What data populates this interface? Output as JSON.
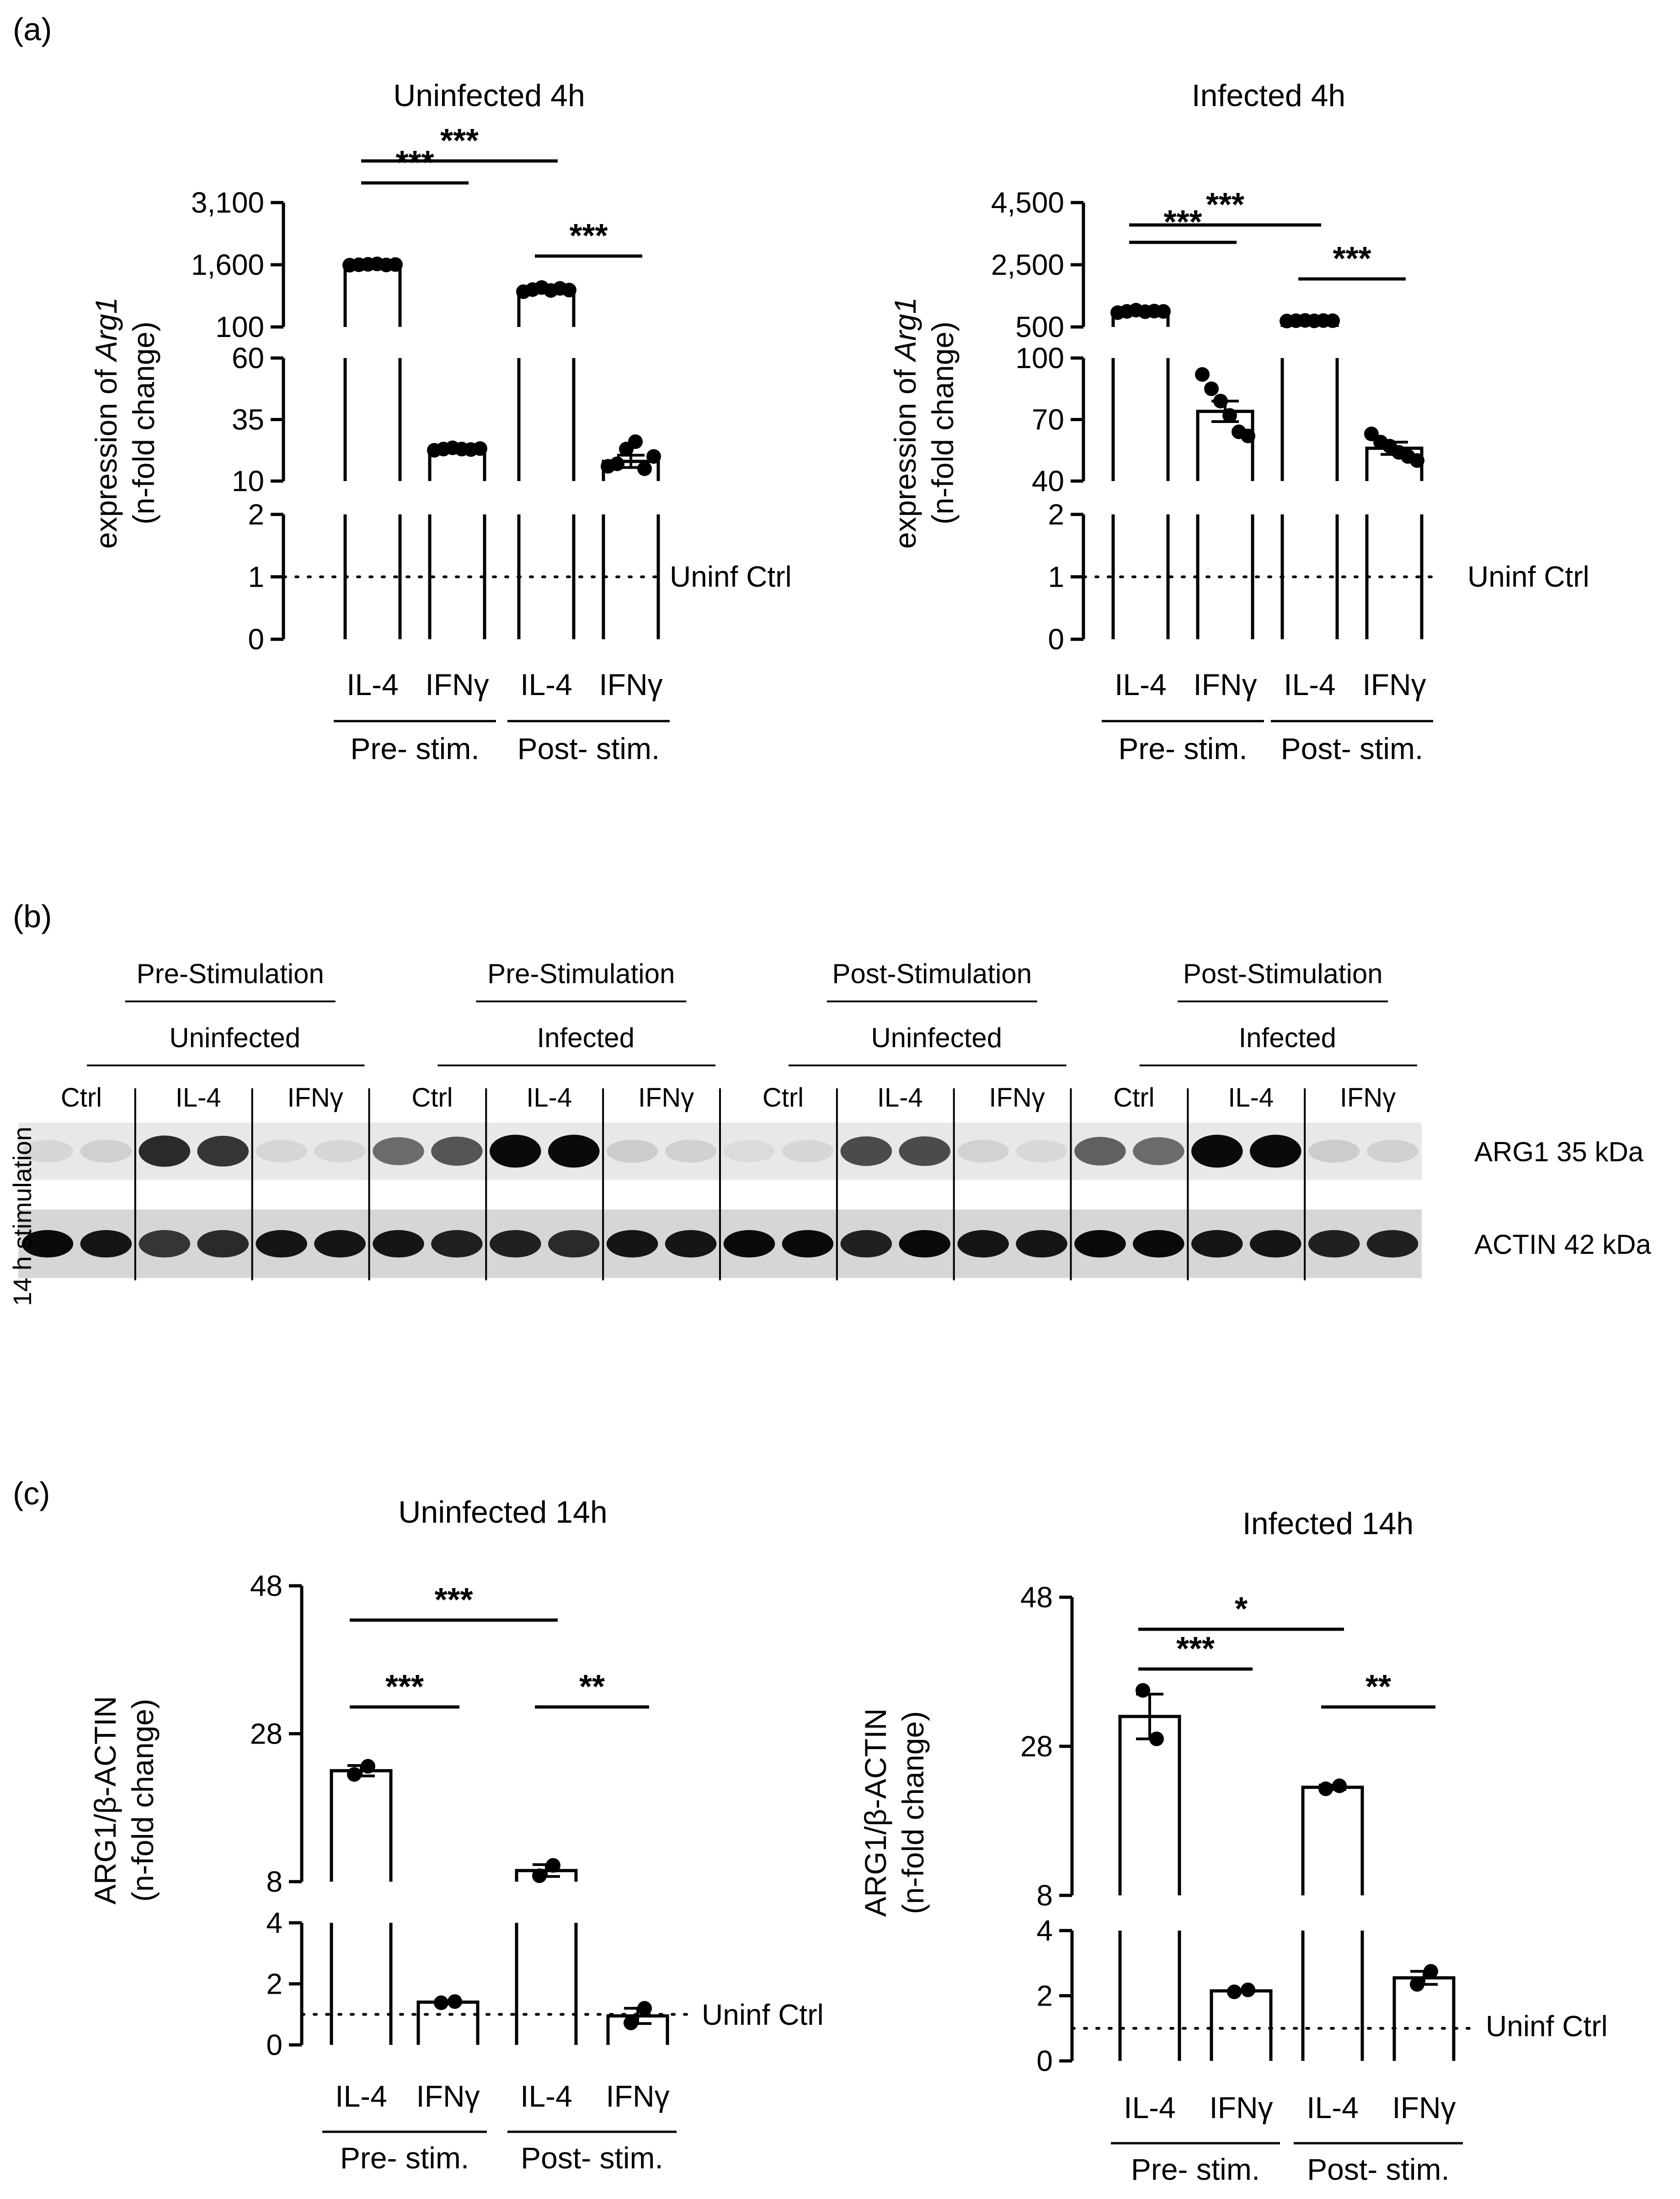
{
  "panel_labels": {
    "a": "(a)",
    "b": "(b)",
    "c": "(c)"
  },
  "ref_label": "Uninf Ctrl",
  "group_labels": [
    "Pre- stim.",
    "Post- stim."
  ],
  "chart_data": [
    {
      "id": "a1",
      "type": "bar",
      "axis": "broken",
      "title": "Uninfected 4h",
      "ylabel": [
        "expression of ",
        "Arg1",
        "(n-fold change)"
      ],
      "categories": [
        "IL-4",
        "IFNγ",
        "IL-4",
        "IFNγ"
      ],
      "groups": [
        "Pre- stim.",
        "Post- stim."
      ],
      "reference_line": 1,
      "segments": [
        {
          "range": [
            0,
            2
          ],
          "ticks": [
            "0",
            "1",
            "2"
          ],
          "tick_values": [
            0,
            1,
            2
          ]
        },
        {
          "range": [
            10,
            60
          ],
          "ticks": [
            "10",
            "35",
            "60"
          ],
          "tick_values": [
            10,
            35,
            60
          ]
        },
        {
          "range": [
            100,
            3100
          ],
          "ticks": [
            "100",
            "1,600",
            "3,100"
          ],
          "tick_values": [
            100,
            1600,
            3100
          ]
        }
      ],
      "values": [
        1600,
        23,
        1000,
        18
      ],
      "errors": [
        25,
        0.6,
        60,
        2.5
      ],
      "points": [
        [
          1590,
          1600,
          1610,
          1620,
          1595,
          1605
        ],
        [
          22.5,
          23,
          23.5,
          23,
          22.8,
          23.2
        ],
        [
          950,
          1000,
          1050,
          980,
          1030,
          990
        ],
        [
          16,
          17,
          23,
          26,
          15,
          20
        ]
      ],
      "significance": [
        {
          "from": 0,
          "to": 1,
          "label": "***"
        },
        {
          "from": 2,
          "to": 3,
          "label": "***"
        },
        {
          "from": 0,
          "to": 2,
          "label": "***"
        }
      ]
    },
    {
      "id": "a2",
      "type": "bar",
      "axis": "broken",
      "title": "Infected 4h",
      "ylabel": [
        "expression of ",
        "Arg1",
        "(n-fold change)"
      ],
      "categories": [
        "IL-4",
        "IFNγ",
        "IL-4",
        "IFNγ"
      ],
      "groups": [
        "Pre- stim.",
        "Post- stim."
      ],
      "reference_line": 1,
      "segments": [
        {
          "range": [
            0,
            2
          ],
          "ticks": [
            "0",
            "1",
            "2"
          ],
          "tick_values": [
            0,
            1,
            2
          ]
        },
        {
          "range": [
            40,
            100
          ],
          "ticks": [
            "40",
            "70",
            "100"
          ],
          "tick_values": [
            40,
            70,
            100
          ]
        },
        {
          "range": [
            500,
            4500
          ],
          "ticks": [
            "500",
            "2,500",
            "4,500"
          ],
          "tick_values": [
            500,
            2500,
            4500
          ]
        }
      ],
      "values": [
        1000,
        74,
        700,
        56
      ],
      "errors": [
        40,
        5,
        15,
        3
      ],
      "points": [
        [
          960,
          1000,
          1040,
          990,
          1010,
          1000
        ],
        [
          92,
          85,
          79,
          72,
          64,
          62
        ],
        [
          690,
          700,
          710,
          695,
          705,
          700
        ],
        [
          63,
          59,
          57,
          54,
          52,
          50
        ]
      ],
      "significance": [
        {
          "from": 0,
          "to": 1,
          "label": "***"
        },
        {
          "from": 2,
          "to": 3,
          "label": "***"
        },
        {
          "from": 0,
          "to": 2,
          "label": "***"
        }
      ]
    },
    {
      "id": "c1",
      "type": "bar",
      "axis": "broken",
      "title": "Uninfected 14h",
      "ylabel": [
        "ARG1/β-ACTIN",
        "",
        "(n-fold change)"
      ],
      "categories": [
        "IL-4",
        "IFNγ",
        "IL-4",
        "IFNγ"
      ],
      "groups": [
        "Pre- stim.",
        "Post- stim."
      ],
      "reference_line": 1,
      "segments": [
        {
          "range": [
            0,
            4
          ],
          "ticks": [
            "0",
            "2",
            "4"
          ],
          "tick_values": [
            0,
            2,
            4
          ]
        },
        {
          "range": [
            8,
            48
          ],
          "ticks": [
            "8",
            "28",
            "48"
          ],
          "tick_values": [
            8,
            28,
            48
          ]
        }
      ],
      "values": [
        23,
        1.4,
        9.5,
        0.95
      ],
      "errors": [
        0.7,
        0.04,
        0.8,
        0.25
      ],
      "points": [
        [
          22.5,
          23.6
        ],
        [
          1.38,
          1.42
        ],
        [
          8.8,
          10.2
        ],
        [
          0.72,
          1.2
        ]
      ],
      "significance": [
        {
          "from": 0,
          "to": 1,
          "label": "***"
        },
        {
          "from": 2,
          "to": 3,
          "label": "**"
        },
        {
          "from": 0,
          "to": 2,
          "label": "***"
        }
      ]
    },
    {
      "id": "c2",
      "type": "bar",
      "axis": "broken",
      "title": "Infected 14h",
      "ylabel": [
        "ARG1/β-ACTIN",
        "",
        "(n-fold change)"
      ],
      "categories": [
        "IL-4",
        "IFNγ",
        "IL-4",
        "IFNγ"
      ],
      "groups": [
        "Pre- stim.",
        "Post- stim."
      ],
      "reference_line": 1,
      "segments": [
        {
          "range": [
            0,
            4
          ],
          "ticks": [
            "0",
            "2",
            "4"
          ],
          "tick_values": [
            0,
            2,
            4
          ]
        },
        {
          "range": [
            8,
            48
          ],
          "ticks": [
            "8",
            "28",
            "48"
          ],
          "tick_values": [
            8,
            28,
            48
          ]
        }
      ],
      "values": [
        32,
        2.15,
        22.5,
        2.55
      ],
      "errors": [
        3,
        0.03,
        0.3,
        0.2
      ],
      "points": [
        [
          35.5,
          29
        ],
        [
          2.12,
          2.18
        ],
        [
          22.3,
          22.7
        ],
        [
          2.35,
          2.75
        ]
      ],
      "significance": [
        {
          "from": 0,
          "to": 1,
          "label": "***"
        },
        {
          "from": 2,
          "to": 3,
          "label": "**"
        },
        {
          "from": 0,
          "to": 2,
          "label": "*"
        }
      ]
    }
  ],
  "western_blot": {
    "side_label": "14 h stimulation",
    "stimulation_headers": [
      "Pre-Stimulation",
      "Pre-Stimulation",
      "Post-Stimulation",
      "Post-Stimulation"
    ],
    "infection_headers": [
      "Uninfected",
      "Infected",
      "Uninfected",
      "Infected"
    ],
    "lane_groups": [
      "Ctrl",
      "IL-4",
      "IFNγ",
      "Ctrl",
      "IL-4",
      "IFNγ",
      "Ctrl",
      "IL-4",
      "IFNγ",
      "Ctrl",
      "IL-4",
      "IFNγ"
    ],
    "bands": [
      {
        "label": "ARG1 35 kDa",
        "intensity": [
          0.05,
          0.08,
          0.85,
          0.8,
          0.05,
          0.05,
          0.55,
          0.65,
          1.0,
          1.0,
          0.1,
          0.08,
          0.03,
          0.05,
          0.7,
          0.7,
          0.07,
          0.04,
          0.6,
          0.55,
          1.0,
          1.0,
          0.1,
          0.08
        ]
      },
      {
        "label": "ACTIN 42 kDa",
        "intensity": [
          1.0,
          0.95,
          0.8,
          0.85,
          0.95,
          0.95,
          0.95,
          0.9,
          0.9,
          0.85,
          0.95,
          0.95,
          1.0,
          1.0,
          0.9,
          1.0,
          0.95,
          0.95,
          1.0,
          1.0,
          0.95,
          0.95,
          0.9,
          0.9
        ]
      }
    ]
  }
}
